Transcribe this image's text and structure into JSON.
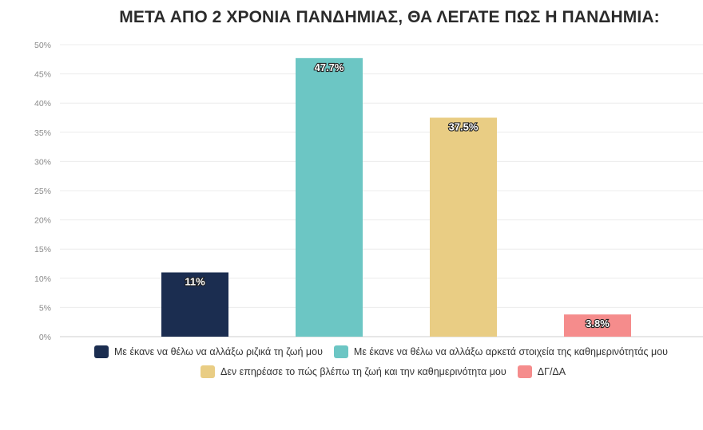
{
  "chart_data": {
    "type": "bar",
    "title": "ΜΕΤΑ ΑΠΟ 2 ΧΡΟΝΙΑ ΠΑΝΔΗΜΙΑΣ, ΘΑ ΛΕΓΑΤΕ ΠΩΣ Η ΠΑΝΔΗΜΙΑ:",
    "xlabel": "",
    "ylabel": "",
    "ylim": [
      0,
      50
    ],
    "ytick_step": 5,
    "ytick_suffix": "%",
    "grid": true,
    "legend_position": "bottom",
    "series": [
      {
        "name": "Με έκανε να θέλω να αλλάξω ριζικά τη ζωή μου",
        "value": 11,
        "label": "11%",
        "color": "#1b2d50"
      },
      {
        "name": "Με έκανε να θέλω να αλλάξω αρκετά στοιχεία της καθημερινότητάς μου",
        "value": 47.7,
        "label": "47.7%",
        "color": "#6cc6c4"
      },
      {
        "name": "Δεν επηρέασε το πώς βλέπω τη ζωή και την καθημερινότητα μου",
        "value": 37.5,
        "label": "37.5%",
        "color": "#e9cd84"
      },
      {
        "name": "ΔΓ/ΔΑ",
        "value": 3.8,
        "label": "3.8%",
        "color": "#f58c8c"
      }
    ]
  }
}
